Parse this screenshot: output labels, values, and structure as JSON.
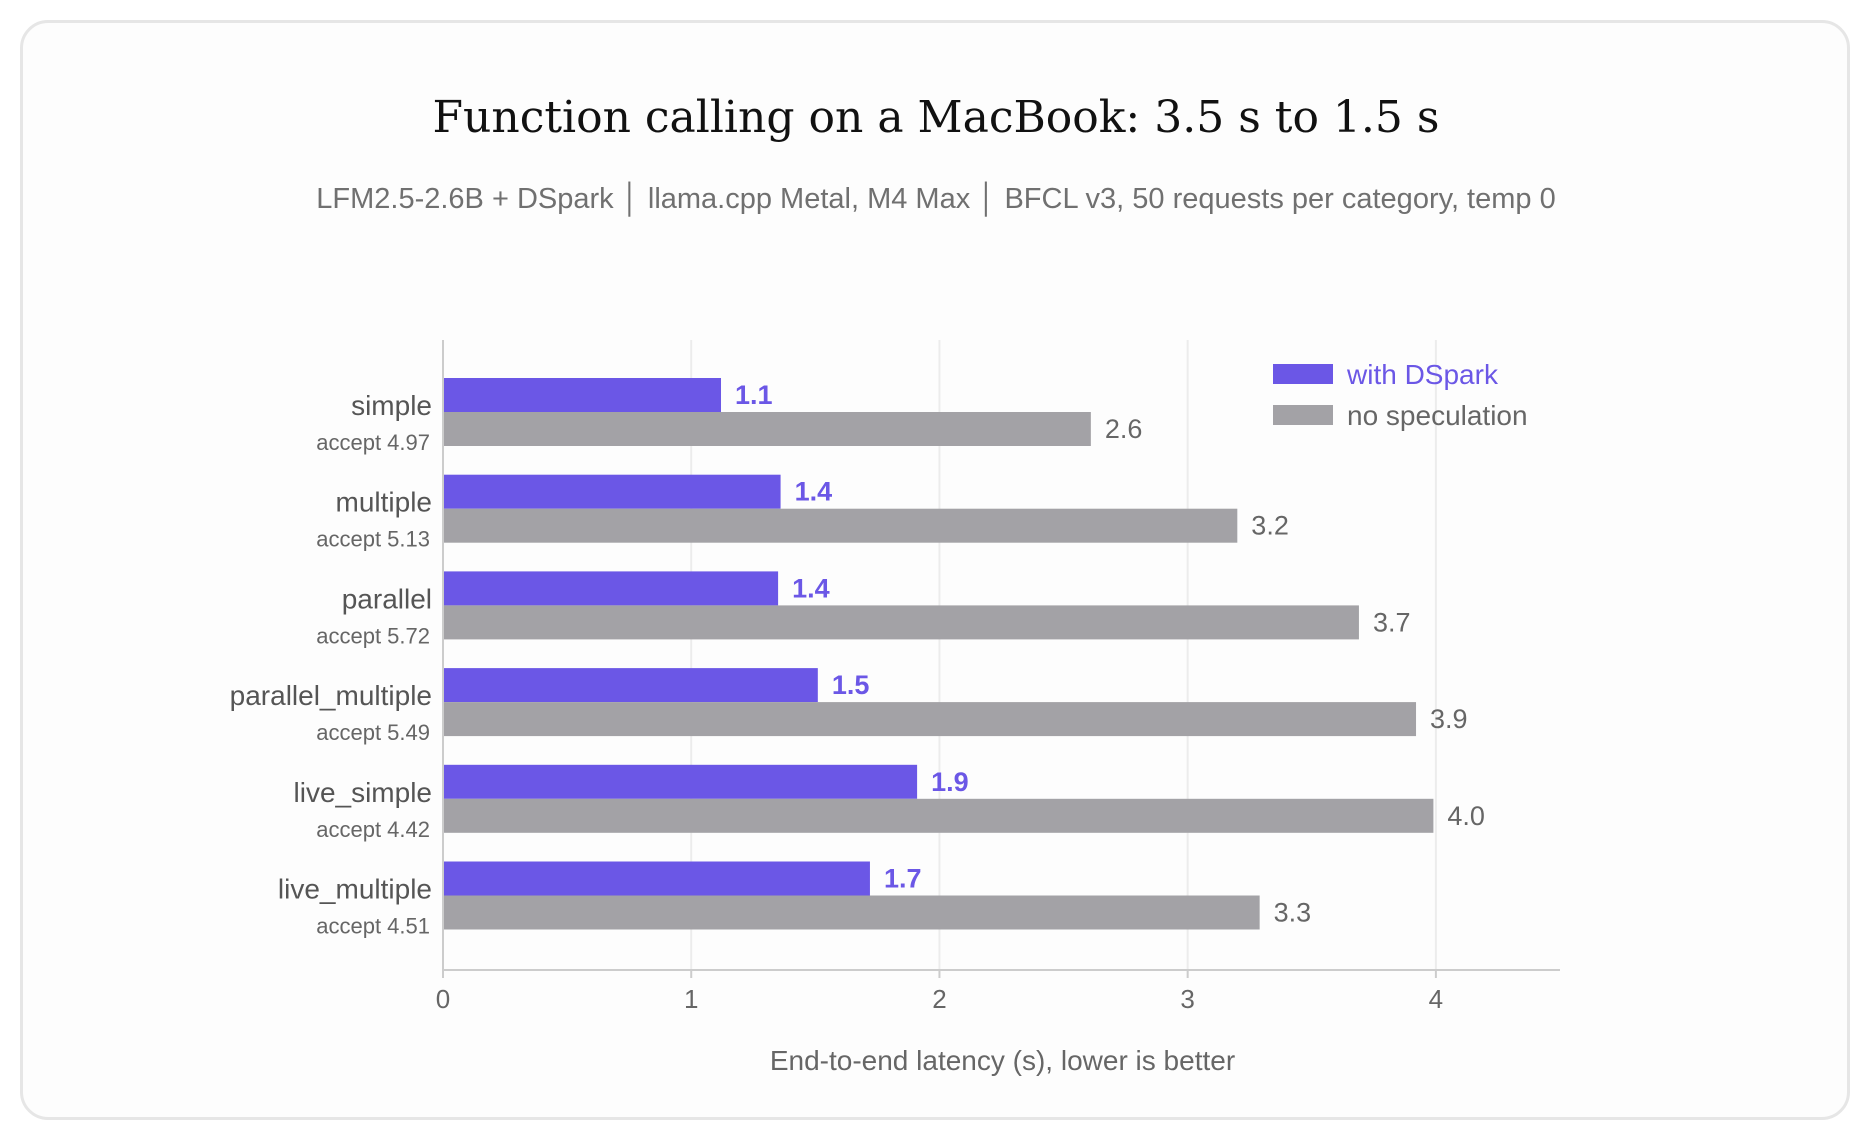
{
  "chart_data": {
    "type": "bar",
    "orientation": "horizontal",
    "title": "Function calling on a MacBook: 3.5 s to 1.5 s",
    "subtitle": "LFM2.5-2.6B + DSpark │ llama.cpp Metal, M4 Max │ BFCL v3, 50 requests per category, temp 0",
    "xlabel": "End-to-end latency (s), lower is better",
    "ylabel": "",
    "xlim": [
      0,
      4.5
    ],
    "xticks": [
      0,
      1,
      2,
      3,
      4
    ],
    "grid": "vertical",
    "legend_position": "top-right",
    "categories": [
      "simple",
      "multiple",
      "parallel",
      "parallel_multiple",
      "live_simple",
      "live_multiple"
    ],
    "category_notes": [
      "accept 4.97",
      "accept 5.13",
      "accept 5.72",
      "accept 5.49",
      "accept 4.42",
      "accept 4.51"
    ],
    "series": [
      {
        "name": "with DSpark",
        "color": "#6b57e6",
        "values": [
          1.12,
          1.36,
          1.35,
          1.51,
          1.91,
          1.72
        ],
        "labels": [
          "1.1",
          "1.4",
          "1.4",
          "1.5",
          "1.9",
          "1.7"
        ]
      },
      {
        "name": "no speculation",
        "color": "#a3a2a6",
        "values": [
          2.61,
          3.2,
          3.69,
          3.92,
          3.99,
          3.29
        ],
        "labels": [
          "2.6",
          "3.2",
          "3.7",
          "3.9",
          "4.0",
          "3.3"
        ]
      }
    ]
  }
}
